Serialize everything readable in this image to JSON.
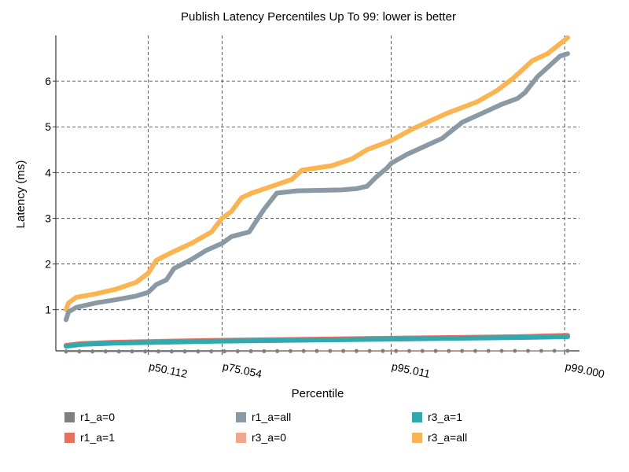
{
  "chart_data": {
    "type": "line",
    "title": "Publish Latency Percentiles Up To 99: lower is better",
    "xlabel": "Percentile",
    "ylabel": "Latency (ms)",
    "x_tick_labels": [
      "p50.112",
      "p75.054",
      "p95.011",
      "p99.000"
    ],
    "x_tick_positions": [
      0.164,
      0.311,
      0.648,
      0.994
    ],
    "ylim": [
      0.1,
      7.0
    ],
    "y_ticks": [
      1,
      2,
      3,
      4,
      5,
      6
    ],
    "grid": true,
    "legend_position": "bottom",
    "series": [
      {
        "name": "r1_a=0",
        "color": "#7f7f7f",
        "style": "dots",
        "points": [
          [
            0,
            0.09
          ],
          [
            0.25,
            0.09
          ],
          [
            0.5,
            0.1
          ],
          [
            0.75,
            0.1
          ],
          [
            1.0,
            0.1
          ]
        ]
      },
      {
        "name": "r1_a=1",
        "color": "#e8715e",
        "style": "band",
        "points": [
          [
            0,
            0.22
          ],
          [
            0.03,
            0.26
          ],
          [
            0.1,
            0.29
          ],
          [
            0.2,
            0.31
          ],
          [
            0.3,
            0.33
          ],
          [
            0.45,
            0.35
          ],
          [
            0.6,
            0.37
          ],
          [
            0.75,
            0.39
          ],
          [
            0.9,
            0.41
          ],
          [
            1.0,
            0.44
          ]
        ]
      },
      {
        "name": "r1_a=all",
        "color": "#8a99a3",
        "style": "band",
        "points": [
          [
            0,
            0.78
          ],
          [
            0.005,
            0.95
          ],
          [
            0.02,
            1.05
          ],
          [
            0.06,
            1.15
          ],
          [
            0.1,
            1.22
          ],
          [
            0.14,
            1.3
          ],
          [
            0.164,
            1.38
          ],
          [
            0.18,
            1.55
          ],
          [
            0.2,
            1.65
          ],
          [
            0.215,
            1.9
          ],
          [
            0.25,
            2.1
          ],
          [
            0.28,
            2.3
          ],
          [
            0.311,
            2.45
          ],
          [
            0.33,
            2.6
          ],
          [
            0.365,
            2.7
          ],
          [
            0.38,
            2.95
          ],
          [
            0.395,
            3.2
          ],
          [
            0.42,
            3.55
          ],
          [
            0.46,
            3.6
          ],
          [
            0.55,
            3.62
          ],
          [
            0.58,
            3.65
          ],
          [
            0.6,
            3.7
          ],
          [
            0.618,
            3.9
          ],
          [
            0.64,
            4.1
          ],
          [
            0.648,
            4.2
          ],
          [
            0.68,
            4.4
          ],
          [
            0.72,
            4.6
          ],
          [
            0.75,
            4.75
          ],
          [
            0.79,
            5.1
          ],
          [
            0.83,
            5.3
          ],
          [
            0.87,
            5.5
          ],
          [
            0.9,
            5.62
          ],
          [
            0.915,
            5.75
          ],
          [
            0.94,
            6.1
          ],
          [
            0.965,
            6.35
          ],
          [
            0.985,
            6.55
          ],
          [
            1.0,
            6.6
          ]
        ]
      },
      {
        "name": "r3_a=0",
        "color": "#f4a58a",
        "style": "dots",
        "points": [
          [
            0,
            0.08
          ],
          [
            0.25,
            0.08
          ],
          [
            0.5,
            0.09
          ],
          [
            0.75,
            0.09
          ],
          [
            1.0,
            0.1
          ]
        ]
      },
      {
        "name": "r3_a=1",
        "color": "#2eaab0",
        "style": "band",
        "points": [
          [
            0,
            0.2
          ],
          [
            0.03,
            0.24
          ],
          [
            0.1,
            0.27
          ],
          [
            0.2,
            0.29
          ],
          [
            0.3,
            0.31
          ],
          [
            0.45,
            0.33
          ],
          [
            0.6,
            0.35
          ],
          [
            0.75,
            0.37
          ],
          [
            0.9,
            0.39
          ],
          [
            1.0,
            0.41
          ]
        ]
      },
      {
        "name": "r3_a=all",
        "color": "#fbb450",
        "style": "band",
        "points": [
          [
            0,
            1.0
          ],
          [
            0.005,
            1.15
          ],
          [
            0.02,
            1.27
          ],
          [
            0.06,
            1.35
          ],
          [
            0.1,
            1.45
          ],
          [
            0.14,
            1.6
          ],
          [
            0.164,
            1.8
          ],
          [
            0.18,
            2.08
          ],
          [
            0.21,
            2.25
          ],
          [
            0.25,
            2.45
          ],
          [
            0.29,
            2.7
          ],
          [
            0.311,
            3.0
          ],
          [
            0.33,
            3.15
          ],
          [
            0.35,
            3.45
          ],
          [
            0.37,
            3.55
          ],
          [
            0.41,
            3.7
          ],
          [
            0.45,
            3.85
          ],
          [
            0.47,
            4.05
          ],
          [
            0.53,
            4.15
          ],
          [
            0.57,
            4.3
          ],
          [
            0.6,
            4.5
          ],
          [
            0.648,
            4.7
          ],
          [
            0.69,
            4.95
          ],
          [
            0.73,
            5.15
          ],
          [
            0.76,
            5.3
          ],
          [
            0.82,
            5.55
          ],
          [
            0.86,
            5.8
          ],
          [
            0.89,
            6.05
          ],
          [
            0.91,
            6.25
          ],
          [
            0.93,
            6.45
          ],
          [
            0.96,
            6.6
          ],
          [
            1.0,
            6.95
          ]
        ]
      }
    ]
  }
}
